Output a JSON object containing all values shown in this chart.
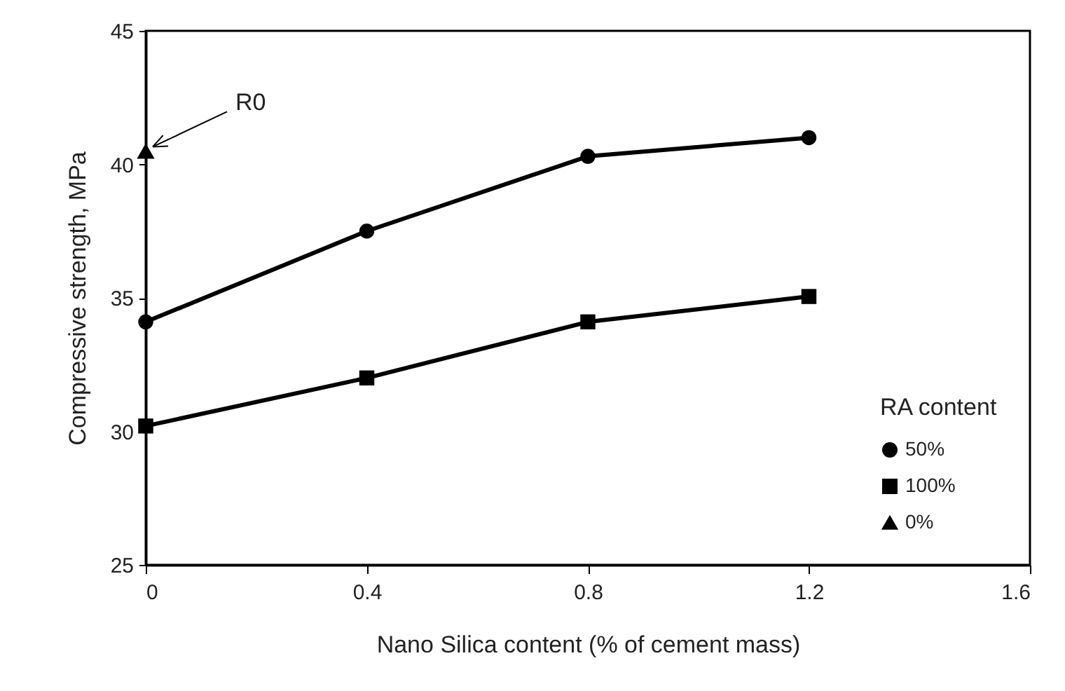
{
  "chart_data": {
    "type": "line",
    "xlabel": "Nano Silica content (% of cement mass)",
    "ylabel": "Compressive strength, MPa",
    "legend_title": "RA content",
    "x": [
      0,
      0.4,
      0.8,
      1.2
    ],
    "series": [
      {
        "name": "50%",
        "color": "#000000",
        "marker": "circle",
        "values": [
          34.1,
          37.5,
          40.3,
          41.0
        ]
      },
      {
        "name": "100%",
        "color": "#000000",
        "marker": "square",
        "values": [
          30.2,
          32.0,
          34.1,
          35.05
        ]
      },
      {
        "name": "0%",
        "type": "scatter",
        "color": "#000000",
        "marker": "triangle",
        "x": [
          0
        ],
        "values": [
          40.5
        ]
      }
    ],
    "annotations": [
      {
        "text": "R0",
        "x": 0,
        "y": 40.5
      }
    ],
    "xlim": [
      0,
      1.6
    ],
    "xticks": [
      0,
      0.4,
      0.8,
      1.2,
      1.6
    ],
    "ylim": [
      25,
      45
    ],
    "yticks": [
      25,
      30,
      35,
      40,
      45
    ],
    "grid": false,
    "legend": "bottom right"
  }
}
